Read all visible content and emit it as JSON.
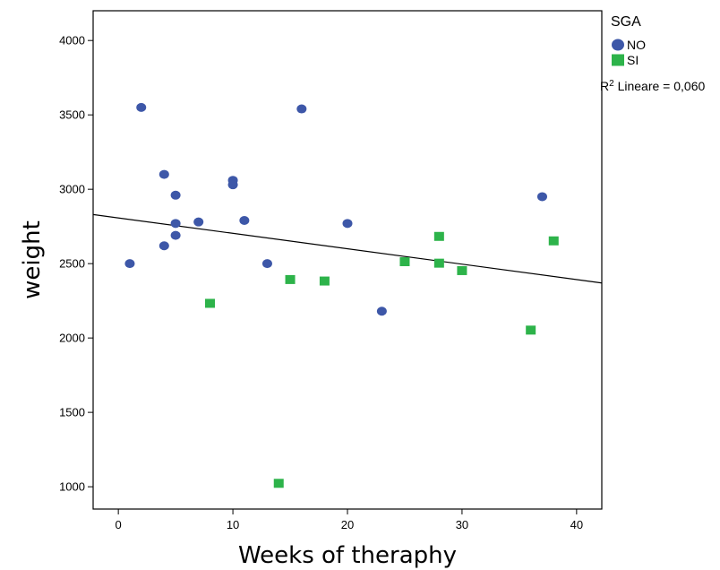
{
  "chart_data": {
    "type": "scatter",
    "title": "",
    "xlabel": "Weeks of theraphy",
    "ylabel": "weight",
    "xlim": [
      -2.2,
      42.2
    ],
    "ylim": [
      850,
      4200
    ],
    "xticks": [
      0,
      10,
      20,
      30,
      40
    ],
    "yticks": [
      1000,
      1500,
      2000,
      2500,
      3000,
      3500,
      4000
    ],
    "grid": false,
    "legend": {
      "title": "SGA",
      "placement": "top-right-outside",
      "fit_label_prefix": "R",
      "fit_label_sup": "2",
      "fit_label_text": " Lineare = 0,060"
    },
    "series": [
      {
        "name": "NO",
        "marker": "circle",
        "color": "#3d57a8",
        "points": [
          [
            1,
            2500
          ],
          [
            2,
            3550
          ],
          [
            4,
            3100
          ],
          [
            4,
            2620
          ],
          [
            5,
            2960
          ],
          [
            5,
            2770
          ],
          [
            5,
            2690
          ],
          [
            7,
            2780
          ],
          [
            10,
            3060
          ],
          [
            10,
            3030
          ],
          [
            11,
            2790
          ],
          [
            13,
            2500
          ],
          [
            16,
            3540
          ],
          [
            20,
            2770
          ],
          [
            23,
            2180
          ],
          [
            37,
            2950
          ]
        ]
      },
      {
        "name": "SI",
        "marker": "square",
        "color": "#2db34a",
        "points": [
          [
            8,
            2230
          ],
          [
            14,
            1020
          ],
          [
            15,
            2390
          ],
          [
            18,
            2380
          ],
          [
            25,
            2510
          ],
          [
            28,
            2680
          ],
          [
            28,
            2500
          ],
          [
            30,
            2450
          ],
          [
            36,
            2050
          ],
          [
            38,
            2650
          ]
        ]
      }
    ],
    "fit_line": {
      "type": "linear",
      "r_squared": 0.06,
      "endpoints": [
        [
          -2.2,
          2830
        ],
        [
          42.2,
          2370
        ]
      ]
    }
  }
}
